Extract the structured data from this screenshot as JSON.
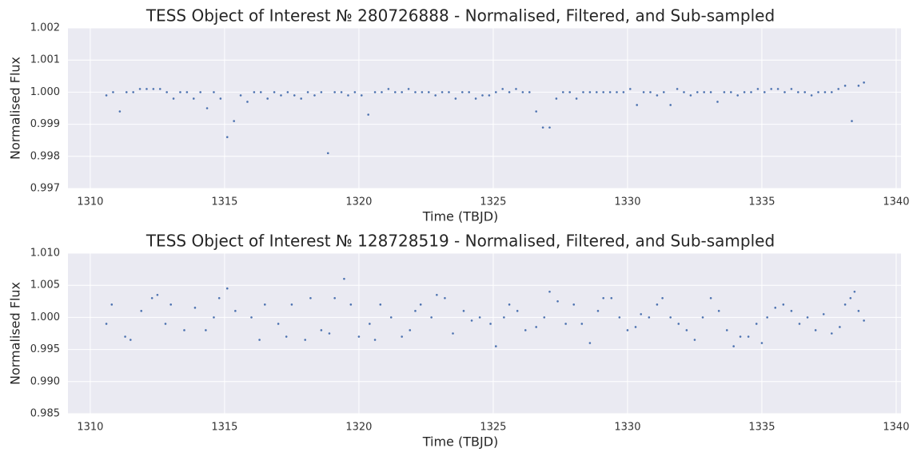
{
  "chart_data": [
    {
      "type": "scatter",
      "title": "TESS Object of Interest № 280726888 - Normalised, Filtered, and Sub-sampled",
      "x_label": "Time (TBJD)",
      "y_label": "Normalised Flux",
      "color": "#4c72b0",
      "grid": true,
      "xlim": [
        1309.17,
        1340.18
      ],
      "ylim": [
        0.997,
        1.002
      ],
      "xticks": [
        1310,
        1315,
        1320,
        1325,
        1330,
        1335,
        1340
      ],
      "yticks": [
        {
          "value": 0.997,
          "label": "0.997"
        },
        {
          "value": 0.998,
          "label": "0.998"
        },
        {
          "value": 0.999,
          "label": "0.999"
        },
        {
          "value": 1.0,
          "label": "1.000"
        },
        {
          "value": 1.001,
          "label": "1.001"
        },
        {
          "value": 1.002,
          "label": "1.002"
        }
      ],
      "x": [
        1310.6,
        1310.85,
        1311.1,
        1311.35,
        1311.6,
        1311.85,
        1312.1,
        1312.35,
        1312.6,
        1312.85,
        1313.1,
        1313.35,
        1313.6,
        1313.85,
        1314.1,
        1314.35,
        1314.6,
        1314.85,
        1315.1,
        1315.35,
        1315.6,
        1315.85,
        1316.1,
        1316.35,
        1316.6,
        1316.85,
        1317.1,
        1317.35,
        1317.6,
        1317.85,
        1318.1,
        1318.35,
        1318.6,
        1318.85,
        1319.1,
        1319.35,
        1319.6,
        1319.85,
        1320.1,
        1320.35,
        1320.6,
        1320.85,
        1321.1,
        1321.35,
        1321.6,
        1321.85,
        1322.1,
        1322.35,
        1322.6,
        1322.85,
        1323.1,
        1323.35,
        1323.6,
        1323.85,
        1324.1,
        1324.35,
        1324.6,
        1324.85,
        1325.1,
        1325.35,
        1325.6,
        1325.85,
        1326.1,
        1326.35,
        1326.6,
        1326.85,
        1327.1,
        1327.35,
        1327.6,
        1327.85,
        1328.1,
        1328.35,
        1328.6,
        1328.85,
        1329.1,
        1329.35,
        1329.6,
        1329.85,
        1330.1,
        1330.35,
        1330.6,
        1330.85,
        1331.1,
        1331.35,
        1331.6,
        1331.85,
        1332.1,
        1332.35,
        1332.6,
        1332.85,
        1333.1,
        1333.35,
        1333.6,
        1333.85,
        1334.1,
        1334.35,
        1334.6,
        1334.85,
        1335.1,
        1335.35,
        1335.6,
        1335.85,
        1336.1,
        1336.35,
        1336.6,
        1336.85,
        1337.1,
        1337.35,
        1337.6,
        1337.85,
        1338.1,
        1338.35,
        1338.6,
        1338.8
      ],
      "values": [
        0.9999,
        1.0,
        0.9994,
        1.0,
        1.0,
        1.0001,
        1.0001,
        1.0001,
        1.0001,
        1.0,
        0.9998,
        1.0,
        1.0,
        0.9998,
        1.0,
        0.9995,
        1.0,
        0.9998,
        0.9986,
        0.9991,
        0.9999,
        0.9997,
        1.0,
        1.0,
        0.9998,
        1.0,
        0.9999,
        1.0,
        0.9999,
        0.9998,
        1.0,
        0.9999,
        1.0,
        0.9981,
        1.0,
        1.0,
        0.9999,
        1.0,
        0.9999,
        0.9993,
        1.0,
        1.0,
        1.0001,
        1.0,
        1.0,
        1.0001,
        1.0,
        1.0,
        1.0,
        0.9999,
        1.0,
        1.0,
        0.9998,
        1.0,
        1.0,
        0.9998,
        0.9999,
        0.9999,
        1.0,
        1.0001,
        1.0,
        1.0001,
        1.0,
        1.0,
        0.9994,
        0.9989,
        0.9989,
        0.9998,
        1.0,
        1.0,
        0.9998,
        1.0,
        1.0,
        1.0,
        1.0,
        1.0,
        1.0,
        1.0,
        1.0001,
        0.9996,
        1.0,
        1.0,
        0.9999,
        1.0,
        0.9996,
        1.0001,
        1.0,
        0.9999,
        1.0,
        1.0,
        1.0,
        0.9997,
        1.0,
        1.0,
        0.9999,
        1.0,
        1.0,
        1.0001,
        1.0,
        1.0001,
        1.0001,
        1.0,
        1.0001,
        1.0,
        1.0,
        0.9999,
        1.0,
        1.0,
        1.0,
        1.0001,
        1.0002,
        0.9991,
        1.0002,
        1.0003
      ]
    },
    {
      "type": "scatter",
      "title": "TESS Object of Interest № 128728519 - Normalised, Filtered, and Sub-sampled",
      "x_label": "Time (TBJD)",
      "y_label": "Normalised Flux",
      "color": "#4c72b0",
      "grid": true,
      "xlim": [
        1309.17,
        1340.18
      ],
      "ylim": [
        0.985,
        1.01
      ],
      "xticks": [
        1310,
        1315,
        1320,
        1325,
        1330,
        1335,
        1340
      ],
      "yticks": [
        {
          "value": 0.985,
          "label": "0.985"
        },
        {
          "value": 0.99,
          "label": "0.990"
        },
        {
          "value": 0.995,
          "label": "0.995"
        },
        {
          "value": 1.0,
          "label": "1.000"
        },
        {
          "value": 1.005,
          "label": "1.005"
        },
        {
          "value": 1.01,
          "label": "1.010"
        }
      ],
      "x": [
        1310.6,
        1310.8,
        1311.3,
        1311.5,
        1311.9,
        1312.3,
        1312.5,
        1312.8,
        1313.0,
        1313.5,
        1313.9,
        1314.3,
        1314.6,
        1314.8,
        1315.1,
        1315.4,
        1316.0,
        1316.3,
        1316.5,
        1317.0,
        1317.3,
        1317.5,
        1318.0,
        1318.2,
        1318.6,
        1318.9,
        1319.1,
        1319.45,
        1319.7,
        1320.0,
        1320.4,
        1320.6,
        1320.8,
        1321.2,
        1321.6,
        1321.9,
        1322.1,
        1322.3,
        1322.7,
        1322.9,
        1323.2,
        1323.5,
        1323.9,
        1324.2,
        1324.5,
        1324.9,
        1325.1,
        1325.4,
        1325.6,
        1325.9,
        1326.2,
        1326.6,
        1326.9,
        1327.1,
        1327.4,
        1327.7,
        1328.0,
        1328.3,
        1328.6,
        1328.9,
        1329.1,
        1329.4,
        1329.7,
        1330.0,
        1330.3,
        1330.5,
        1330.8,
        1331.1,
        1331.3,
        1331.6,
        1331.9,
        1332.2,
        1332.5,
        1332.8,
        1333.1,
        1333.4,
        1333.7,
        1333.95,
        1334.2,
        1334.5,
        1334.8,
        1335.0,
        1335.2,
        1335.5,
        1335.8,
        1336.1,
        1336.4,
        1336.7,
        1337.0,
        1337.3,
        1337.6,
        1337.9,
        1338.1,
        1338.3,
        1338.45,
        1338.6,
        1338.8
      ],
      "values": [
        0.999,
        1.002,
        0.997,
        0.9965,
        1.001,
        1.003,
        1.0035,
        0.999,
        1.002,
        0.998,
        1.0015,
        0.998,
        1.0,
        1.003,
        1.0045,
        1.001,
        1.0,
        0.9965,
        1.002,
        0.999,
        0.997,
        1.002,
        0.9965,
        1.003,
        0.998,
        0.9975,
        1.003,
        1.006,
        1.002,
        0.997,
        0.999,
        0.9965,
        1.002,
        1.0,
        0.997,
        0.998,
        1.001,
        1.002,
        1.0,
        1.0035,
        1.003,
        0.9975,
        1.001,
        0.9995,
        1.0,
        0.999,
        0.9955,
        1.0,
        1.002,
        1.001,
        0.998,
        0.9985,
        1.0,
        1.004,
        1.0025,
        0.999,
        1.002,
        0.999,
        0.996,
        1.001,
        1.003,
        1.003,
        1.0,
        0.998,
        0.9985,
        1.0005,
        1.0,
        1.002,
        1.003,
        1.0,
        0.999,
        0.998,
        0.9965,
        1.0,
        1.003,
        1.001,
        0.998,
        0.9955,
        0.997,
        0.997,
        0.999,
        0.996,
        1.0,
        1.0015,
        1.002,
        1.001,
        0.999,
        1.0,
        0.998,
        1.0005,
        0.9975,
        0.9985,
        1.002,
        1.003,
        1.004,
        1.001,
        0.9995
      ]
    }
  ]
}
